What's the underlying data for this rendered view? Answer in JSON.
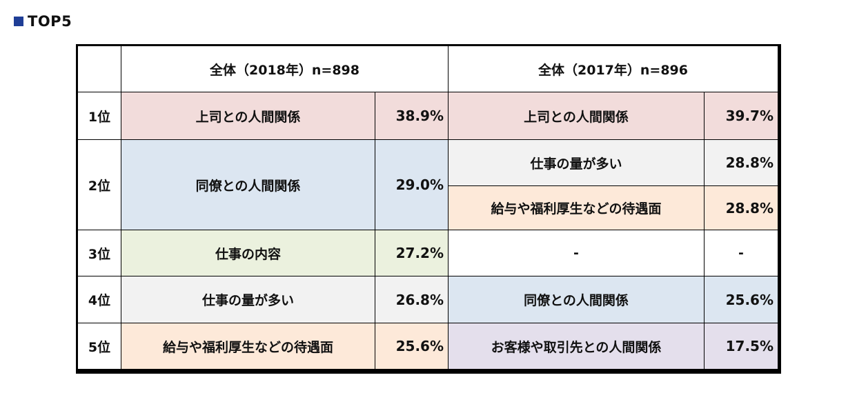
{
  "heading": {
    "text": "TOP5"
  },
  "table": {
    "header_2018": "全体（2018年）n=898",
    "header_2017": "全体（2017年）n=896",
    "rows": [
      {
        "rank": "1位",
        "y2018": {
          "item": "上司との人間関係",
          "pct": "38.9%"
        },
        "y2017": [
          {
            "item": "上司との人間関係",
            "pct": "39.7%"
          }
        ]
      },
      {
        "rank": "2位",
        "y2018": {
          "item": "同僚との人間関係",
          "pct": "29.0%"
        },
        "y2017": [
          {
            "item": "仕事の量が多い",
            "pct": "28.8%"
          },
          {
            "item": "給与や福利厚生などの待遇面",
            "pct": "28.8%"
          }
        ]
      },
      {
        "rank": "3位",
        "y2018": {
          "item": "仕事の内容",
          "pct": "27.2%"
        },
        "y2017": [
          {
            "item": "-",
            "pct": "-"
          }
        ]
      },
      {
        "rank": "4位",
        "y2018": {
          "item": "仕事の量が多い",
          "pct": "26.8%"
        },
        "y2017": [
          {
            "item": "同僚との人間関係",
            "pct": "25.6%"
          }
        ]
      },
      {
        "rank": "5位",
        "y2018": {
          "item": "給与や福利厚生などの待遇面",
          "pct": "25.6%"
        },
        "y2017": [
          {
            "item": "お客様や取引先との人間関係",
            "pct": "17.5%"
          }
        ]
      }
    ]
  },
  "colors": {
    "heading_square": "#1f3e96",
    "supervisor": "#f2dcdb",
    "colleague": "#dce6f1",
    "workload": "#f2f2f2",
    "compensation": "#fde9d9",
    "job_content": "#ebf1de",
    "customers": "#e4dfec",
    "empty": "#ffffff"
  }
}
